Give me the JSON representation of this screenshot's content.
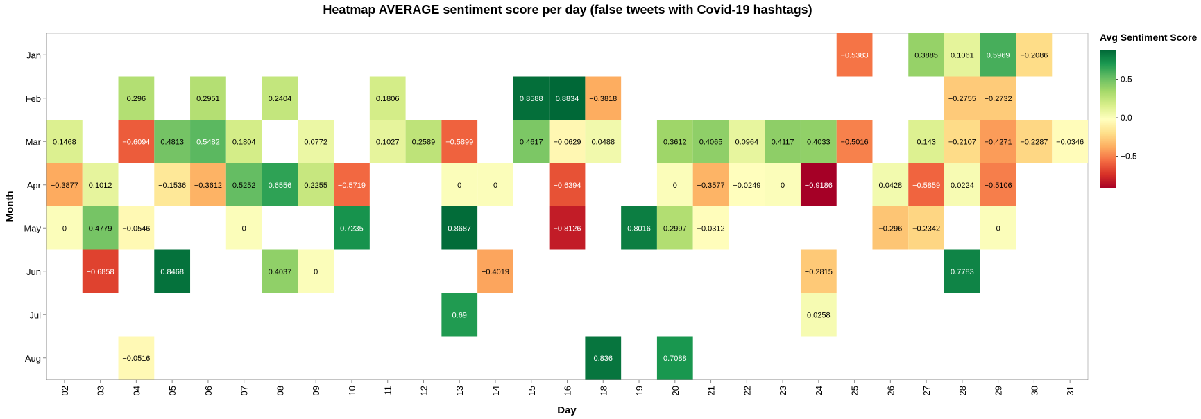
{
  "chart_data": {
    "type": "heatmap",
    "title": "Heatmap AVERAGE sentiment score per day (false tweets with Covid-19 hashtags)",
    "xlabel": "Day",
    "ylabel": "Month",
    "x_categories": [
      "02",
      "03",
      "04",
      "05",
      "06",
      "07",
      "08",
      "09",
      "10",
      "11",
      "12",
      "13",
      "14",
      "15",
      "16",
      "18",
      "19",
      "20",
      "21",
      "22",
      "23",
      "24",
      "25",
      "26",
      "27",
      "28",
      "29",
      "30",
      "31"
    ],
    "y_categories": [
      "Jan",
      "Feb",
      "Mar",
      "Apr",
      "May",
      "Jun",
      "Jul",
      "Aug"
    ],
    "cells": [
      {
        "month": "Jan",
        "day": "25",
        "value": -0.5383,
        "label": "−0.5383"
      },
      {
        "month": "Jan",
        "day": "27",
        "value": 0.3885,
        "label": "0.3885"
      },
      {
        "month": "Jan",
        "day": "28",
        "value": 0.1061,
        "label": "0.1061"
      },
      {
        "month": "Jan",
        "day": "29",
        "value": 0.5969,
        "label": "0.5969"
      },
      {
        "month": "Jan",
        "day": "30",
        "value": -0.2086,
        "label": "−0.2086"
      },
      {
        "month": "Feb",
        "day": "04",
        "value": 0.296,
        "label": "0.296"
      },
      {
        "month": "Feb",
        "day": "06",
        "value": 0.2951,
        "label": "0.2951"
      },
      {
        "month": "Feb",
        "day": "08",
        "value": 0.2404,
        "label": "0.2404"
      },
      {
        "month": "Feb",
        "day": "11",
        "value": 0.1806,
        "label": "0.1806"
      },
      {
        "month": "Feb",
        "day": "15",
        "value": 0.8588,
        "label": "0.8588"
      },
      {
        "month": "Feb",
        "day": "16",
        "value": 0.8834,
        "label": "0.8834"
      },
      {
        "month": "Feb",
        "day": "18",
        "value": -0.3818,
        "label": "−0.3818"
      },
      {
        "month": "Feb",
        "day": "28",
        "value": -0.2755,
        "label": "−0.2755"
      },
      {
        "month": "Feb",
        "day": "29",
        "value": -0.2732,
        "label": "−0.2732"
      },
      {
        "month": "Mar",
        "day": "02",
        "value": 0.1468,
        "label": "0.1468"
      },
      {
        "month": "Mar",
        "day": "04",
        "value": -0.6094,
        "label": "−0.6094"
      },
      {
        "month": "Mar",
        "day": "05",
        "value": 0.4813,
        "label": "0.4813"
      },
      {
        "month": "Mar",
        "day": "06",
        "value": 0.5482,
        "label": "0.5482"
      },
      {
        "month": "Mar",
        "day": "07",
        "value": 0.1804,
        "label": "0.1804"
      },
      {
        "month": "Mar",
        "day": "09",
        "value": 0.0772,
        "label": "0.0772"
      },
      {
        "month": "Mar",
        "day": "11",
        "value": 0.1027,
        "label": "0.1027"
      },
      {
        "month": "Mar",
        "day": "12",
        "value": 0.2589,
        "label": "0.2589"
      },
      {
        "month": "Mar",
        "day": "13",
        "value": -0.5899,
        "label": "−0.5899"
      },
      {
        "month": "Mar",
        "day": "15",
        "value": 0.4617,
        "label": "0.4617"
      },
      {
        "month": "Mar",
        "day": "16",
        "value": -0.0629,
        "label": "−0.0629"
      },
      {
        "month": "Mar",
        "day": "18",
        "value": 0.0488,
        "label": "0.0488"
      },
      {
        "month": "Mar",
        "day": "20",
        "value": 0.3612,
        "label": "0.3612"
      },
      {
        "month": "Mar",
        "day": "21",
        "value": 0.4065,
        "label": "0.4065"
      },
      {
        "month": "Mar",
        "day": "22",
        "value": 0.0964,
        "label": "0.0964"
      },
      {
        "month": "Mar",
        "day": "23",
        "value": 0.4117,
        "label": "0.4117"
      },
      {
        "month": "Mar",
        "day": "24",
        "value": 0.4033,
        "label": "0.4033"
      },
      {
        "month": "Mar",
        "day": "25",
        "value": -0.5016,
        "label": "−0.5016"
      },
      {
        "month": "Mar",
        "day": "27",
        "value": 0.143,
        "label": "0.143"
      },
      {
        "month": "Mar",
        "day": "28",
        "value": -0.2107,
        "label": "−0.2107"
      },
      {
        "month": "Mar",
        "day": "29",
        "value": -0.4271,
        "label": "−0.4271"
      },
      {
        "month": "Mar",
        "day": "30",
        "value": -0.2287,
        "label": "−0.2287"
      },
      {
        "month": "Mar",
        "day": "31",
        "value": -0.0346,
        "label": "−0.0346"
      },
      {
        "month": "Apr",
        "day": "02",
        "value": -0.3877,
        "label": "−0.3877"
      },
      {
        "month": "Apr",
        "day": "03",
        "value": 0.1012,
        "label": "0.1012"
      },
      {
        "month": "Apr",
        "day": "05",
        "value": -0.1536,
        "label": "−0.1536"
      },
      {
        "month": "Apr",
        "day": "06",
        "value": -0.3612,
        "label": "−0.3612"
      },
      {
        "month": "Apr",
        "day": "07",
        "value": 0.5252,
        "label": "0.5252"
      },
      {
        "month": "Apr",
        "day": "08",
        "value": 0.6556,
        "label": "0.6556"
      },
      {
        "month": "Apr",
        "day": "09",
        "value": 0.2255,
        "label": "0.2255"
      },
      {
        "month": "Apr",
        "day": "10",
        "value": -0.5719,
        "label": "−0.5719"
      },
      {
        "month": "Apr",
        "day": "13",
        "value": 0,
        "label": "0"
      },
      {
        "month": "Apr",
        "day": "14",
        "value": 0,
        "label": "0"
      },
      {
        "month": "Apr",
        "day": "16",
        "value": -0.6394,
        "label": "−0.6394"
      },
      {
        "month": "Apr",
        "day": "20",
        "value": 0,
        "label": "0"
      },
      {
        "month": "Apr",
        "day": "21",
        "value": -0.3577,
        "label": "−0.3577"
      },
      {
        "month": "Apr",
        "day": "22",
        "value": -0.0249,
        "label": "−0.0249"
      },
      {
        "month": "Apr",
        "day": "23",
        "value": 0,
        "label": "0"
      },
      {
        "month": "Apr",
        "day": "24",
        "value": -0.9186,
        "label": "−0.9186"
      },
      {
        "month": "Apr",
        "day": "26",
        "value": 0.0428,
        "label": "0.0428"
      },
      {
        "month": "Apr",
        "day": "27",
        "value": -0.5859,
        "label": "−0.5859"
      },
      {
        "month": "Apr",
        "day": "28",
        "value": 0.0224,
        "label": "0.0224"
      },
      {
        "month": "Apr",
        "day": "29",
        "value": -0.5106,
        "label": "−0.5106"
      },
      {
        "month": "May",
        "day": "02",
        "value": 0,
        "label": "0"
      },
      {
        "month": "May",
        "day": "03",
        "value": 0.4779,
        "label": "0.4779"
      },
      {
        "month": "May",
        "day": "04",
        "value": -0.0546,
        "label": "−0.0546"
      },
      {
        "month": "May",
        "day": "07",
        "value": 0,
        "label": "0"
      },
      {
        "month": "May",
        "day": "10",
        "value": 0.7235,
        "label": "0.7235"
      },
      {
        "month": "May",
        "day": "13",
        "value": 0.8687,
        "label": "0.8687"
      },
      {
        "month": "May",
        "day": "16",
        "value": -0.8126,
        "label": "−0.8126"
      },
      {
        "month": "May",
        "day": "19",
        "value": 0.8016,
        "label": "0.8016"
      },
      {
        "month": "May",
        "day": "20",
        "value": 0.2997,
        "label": "0.2997"
      },
      {
        "month": "May",
        "day": "21",
        "value": -0.0312,
        "label": "−0.0312"
      },
      {
        "month": "May",
        "day": "26",
        "value": -0.296,
        "label": "−0.296"
      },
      {
        "month": "May",
        "day": "27",
        "value": -0.2342,
        "label": "−0.2342"
      },
      {
        "month": "May",
        "day": "29",
        "value": 0,
        "label": "0"
      },
      {
        "month": "Jun",
        "day": "03",
        "value": -0.6858,
        "label": "−0.6858"
      },
      {
        "month": "Jun",
        "day": "05",
        "value": 0.8468,
        "label": "0.8468"
      },
      {
        "month": "Jun",
        "day": "08",
        "value": 0.4037,
        "label": "0.4037"
      },
      {
        "month": "Jun",
        "day": "09",
        "value": 0,
        "label": "0"
      },
      {
        "month": "Jun",
        "day": "14",
        "value": -0.4019,
        "label": "−0.4019"
      },
      {
        "month": "Jun",
        "day": "24",
        "value": -0.2815,
        "label": "−0.2815"
      },
      {
        "month": "Jun",
        "day": "28",
        "value": 0.7783,
        "label": "0.7783"
      },
      {
        "month": "Jul",
        "day": "13",
        "value": 0.69,
        "label": "0.69"
      },
      {
        "month": "Jul",
        "day": "24",
        "value": 0.0258,
        "label": "0.0258"
      },
      {
        "month": "Aug",
        "day": "04",
        "value": -0.0516,
        "label": "−0.0516"
      },
      {
        "month": "Aug",
        "day": "18",
        "value": 0.836,
        "label": "0.836"
      },
      {
        "month": "Aug",
        "day": "20",
        "value": 0.7088,
        "label": "0.7088"
      }
    ],
    "color_scale": {
      "scheme": "red-yellow-green",
      "domain": [
        -0.9186,
        0.8834
      ]
    },
    "legend": {
      "title": "Avg Sentiment Score",
      "ticks": [
        0.5,
        0.0,
        -0.5
      ],
      "tick_labels": [
        "0.5",
        "0.0",
        "−0.5"
      ],
      "placement": "right"
    },
    "grid": false
  }
}
